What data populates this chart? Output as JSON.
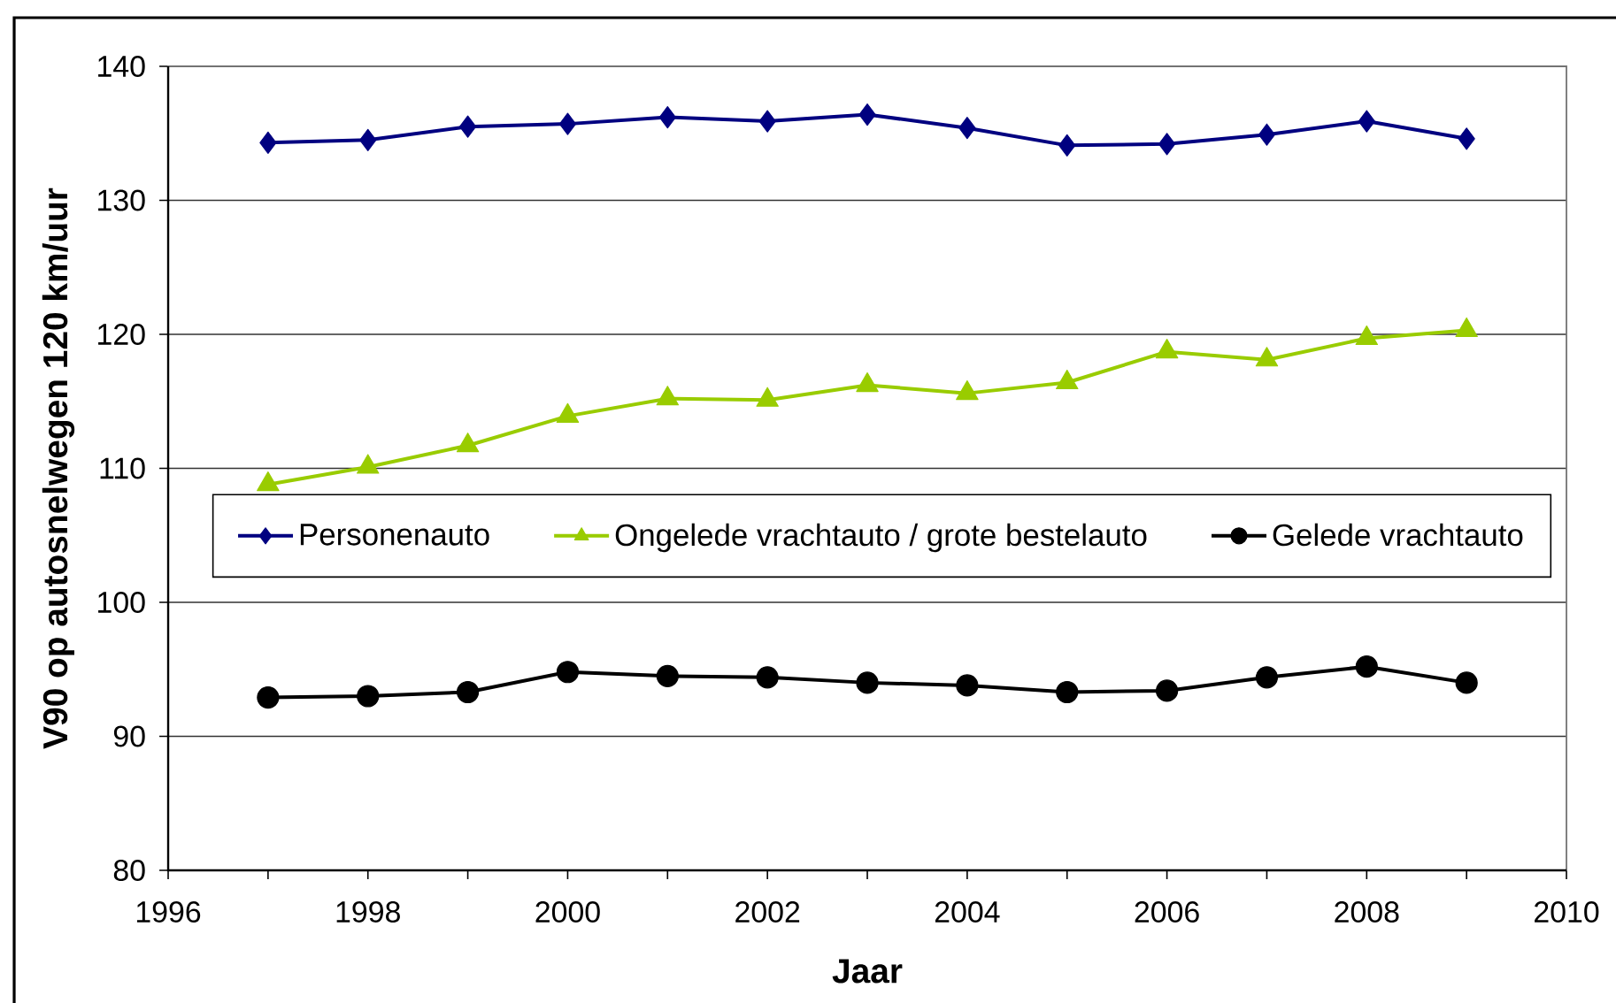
{
  "chart_data": {
    "type": "line",
    "xlabel": "Jaar",
    "ylabel": "V90 op autosnelwegen 120 km/uur",
    "x": [
      1997,
      1998,
      1999,
      2000,
      2001,
      2002,
      2003,
      2004,
      2005,
      2006,
      2007,
      2008,
      2009
    ],
    "series": [
      {
        "name": "Personenauto",
        "color": "#000080",
        "marker": "diamond",
        "values": [
          134.3,
          134.5,
          135.5,
          135.7,
          136.2,
          135.9,
          136.4,
          135.4,
          134.1,
          134.2,
          134.9,
          135.9,
          134.6
        ]
      },
      {
        "name": "Ongelede vrachtauto / grote bestelauto",
        "color": "#99cc00",
        "marker": "triangle",
        "values": [
          108.8,
          110.1,
          111.7,
          113.9,
          115.2,
          115.1,
          116.2,
          115.6,
          116.4,
          118.7,
          118.1,
          119.7,
          120.3
        ]
      },
      {
        "name": "Gelede vrachtauto",
        "color": "#000000",
        "marker": "circle",
        "values": [
          92.9,
          93.0,
          93.3,
          94.8,
          94.5,
          94.4,
          94.0,
          93.8,
          93.3,
          93.4,
          94.4,
          95.2,
          94.0
        ]
      }
    ],
    "xlim": [
      1996,
      2010
    ],
    "ylim": [
      80,
      140
    ],
    "xticks": [
      1996,
      {
        "value": 1997,
        "label": null
      },
      1998,
      {
        "value": 1999,
        "label": null
      },
      2000,
      {
        "value": 2001,
        "label": null
      },
      2002,
      {
        "value": 2003,
        "label": null
      },
      2004,
      {
        "value": 2005,
        "label": null
      },
      2006,
      {
        "value": 2007,
        "label": null
      },
      2008,
      {
        "value": 2009,
        "label": null
      },
      2010
    ],
    "yticks": [
      80,
      90,
      100,
      110,
      120,
      130,
      140
    ],
    "grid": "y",
    "legend": "center"
  }
}
